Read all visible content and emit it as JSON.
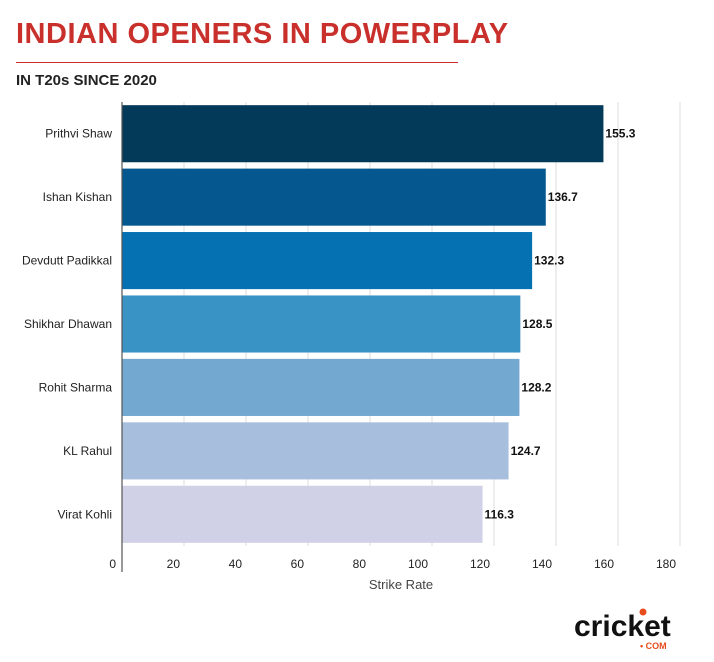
{
  "chart_data": {
    "type": "bar",
    "orientation": "horizontal",
    "title": "INDIAN OPENERS IN POWERPLAY",
    "subtitle": "IN T20s SINCE 2020",
    "xlabel": "Strike Rate",
    "ylabel": "",
    "xlim": [
      0,
      180
    ],
    "ticks": [
      0,
      20,
      40,
      60,
      80,
      100,
      120,
      140,
      160,
      180
    ],
    "grid": true,
    "categories": [
      "Prithvi Shaw",
      "Ishan Kishan",
      "Devdutt Padikkal",
      "Shikhar Dhawan",
      "Rohit Sharma",
      "KL Rahul",
      "Virat Kohli"
    ],
    "values": [
      155.3,
      136.7,
      132.3,
      128.5,
      128.2,
      124.7,
      116.3
    ],
    "colors": [
      "#033a5a",
      "#04578f",
      "#0570b2",
      "#3993c4",
      "#73a9d0",
      "#a7bedc",
      "#d0d1e6"
    ]
  },
  "colors": {
    "accent": "#c9302c"
  },
  "brand": {
    "logo_text": "cricket",
    "logo_suffix": "COM"
  }
}
